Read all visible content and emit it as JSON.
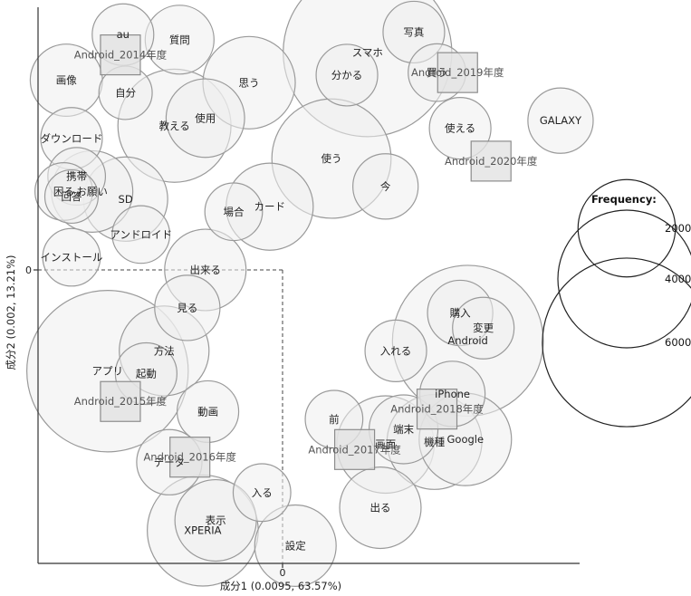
{
  "chart_data": {
    "type": "scatter",
    "xlabel": "成分1 (0.0095, 63.57%)",
    "ylabel": "成分2 (0.002, 13.21%)",
    "x_tick_label": "0",
    "y_tick_label": "0",
    "xlim": [
      -0.95,
      1.14
    ],
    "ylim": [
      -1.16,
      1.04
    ],
    "legend": {
      "title": "Frequency:",
      "entries": [
        {
          "value": 2000,
          "label": "2000"
        },
        {
          "value": 4000,
          "label": "4000"
        },
        {
          "value": 6000,
          "label": "6000"
        }
      ]
    },
    "words": [
      {
        "label": "au",
        "x": -0.62,
        "y": 0.93,
        "size": 800
      },
      {
        "label": "質問",
        "x": -0.4,
        "y": 0.91,
        "size": 1000
      },
      {
        "label": "スマホ",
        "x": 0.33,
        "y": 0.86,
        "size": 6000
      },
      {
        "label": "写真",
        "x": 0.51,
        "y": 0.94,
        "size": 800
      },
      {
        "label": "画像",
        "x": -0.84,
        "y": 0.75,
        "size": 1100
      },
      {
        "label": "思う",
        "x": -0.13,
        "y": 0.74,
        "size": 1800
      },
      {
        "label": "分かる",
        "x": 0.25,
        "y": 0.77,
        "size": 800
      },
      {
        "label": "買う",
        "x": 0.6,
        "y": 0.78,
        "size": 700
      },
      {
        "label": "自分",
        "x": -0.61,
        "y": 0.7,
        "size": 600
      },
      {
        "label": "使用",
        "x": -0.3,
        "y": 0.6,
        "size": 1300
      },
      {
        "label": "教える",
        "x": -0.42,
        "y": 0.57,
        "size": 2700
      },
      {
        "label": "使える",
        "x": 0.69,
        "y": 0.56,
        "size": 800
      },
      {
        "label": "GALAXY",
        "x": 1.08,
        "y": 0.59,
        "size": 900
      },
      {
        "label": "ダウンロード",
        "x": -0.82,
        "y": 0.52,
        "size": 800
      },
      {
        "label": "使う",
        "x": 0.19,
        "y": 0.44,
        "size": 3000
      },
      {
        "label": "携帯",
        "x": -0.8,
        "y": 0.37,
        "size": 700
      },
      {
        "label": "今",
        "x": 0.4,
        "y": 0.33,
        "size": 900
      },
      {
        "label": "困る",
        "x": -0.85,
        "y": 0.31,
        "size": 700
      },
      {
        "label": "お願い",
        "x": -0.74,
        "y": 0.31,
        "size": 1400
      },
      {
        "label": "SD",
        "x": -0.61,
        "y": 0.28,
        "size": 1500
      },
      {
        "label": "回答",
        "x": -0.82,
        "y": 0.29,
        "size": 600
      },
      {
        "label": "カード",
        "x": -0.05,
        "y": 0.25,
        "size": 1600
      },
      {
        "label": "場合",
        "x": -0.19,
        "y": 0.23,
        "size": 700
      },
      {
        "label": "アンドロイド",
        "x": -0.55,
        "y": 0.14,
        "size": 700
      },
      {
        "label": "インストール",
        "x": -0.82,
        "y": 0.05,
        "size": 700
      },
      {
        "label": "出来る",
        "x": -0.3,
        "y": 0.0,
        "size": 1400
      },
      {
        "label": "見る",
        "x": -0.37,
        "y": -0.15,
        "size": 900
      },
      {
        "label": "購入",
        "x": 0.69,
        "y": -0.17,
        "size": 900
      },
      {
        "label": "変更",
        "x": 0.78,
        "y": -0.23,
        "size": 800
      },
      {
        "label": "Android",
        "x": 0.72,
        "y": -0.28,
        "size": 4800
      },
      {
        "label": "方法",
        "x": -0.46,
        "y": -0.32,
        "size": 1700
      },
      {
        "label": "入れる",
        "x": 0.44,
        "y": -0.32,
        "size": 800
      },
      {
        "label": "アプリ",
        "x": -0.68,
        "y": -0.4,
        "size": 5500
      },
      {
        "label": "起動",
        "x": -0.53,
        "y": -0.41,
        "size": 800
      },
      {
        "label": "iPhone",
        "x": 0.66,
        "y": -0.49,
        "size": 900
      },
      {
        "label": "動画",
        "x": -0.29,
        "y": -0.56,
        "size": 800
      },
      {
        "label": "前",
        "x": 0.2,
        "y": -0.59,
        "size": 700
      },
      {
        "label": "端末",
        "x": 0.47,
        "y": -0.63,
        "size": 1000
      },
      {
        "label": "機種",
        "x": 0.59,
        "y": -0.68,
        "size": 1900
      },
      {
        "label": "Google",
        "x": 0.71,
        "y": -0.67,
        "size": 1800
      },
      {
        "label": "画面",
        "x": 0.4,
        "y": -0.69,
        "size": 2000
      },
      {
        "label": "データ",
        "x": -0.44,
        "y": -0.76,
        "size": 900
      },
      {
        "label": "入る",
        "x": -0.08,
        "y": -0.88,
        "size": 700
      },
      {
        "label": "出る",
        "x": 0.38,
        "y": -0.94,
        "size": 1400
      },
      {
        "label": "表示",
        "x": -0.26,
        "y": -0.99,
        "size": 1400
      },
      {
        "label": "XPERIA",
        "x": -0.31,
        "y": -1.03,
        "size": 2600
      },
      {
        "label": "設定",
        "x": 0.05,
        "y": -1.09,
        "size": 1400
      }
    ],
    "categories": [
      {
        "label": "Android_2014年度",
        "x": -0.63,
        "y": 0.85
      },
      {
        "label": "Android_2019年度",
        "x": 0.68,
        "y": 0.78
      },
      {
        "label": "Android_2020年度",
        "x": 0.81,
        "y": 0.43
      },
      {
        "label": "Android_2015年度",
        "x": -0.63,
        "y": -0.52
      },
      {
        "label": "Android_2018年度",
        "x": 0.6,
        "y": -0.55
      },
      {
        "label": "Android_2017年度",
        "x": 0.28,
        "y": -0.71
      },
      {
        "label": "Android_2016年度",
        "x": -0.36,
        "y": -0.74
      }
    ]
  }
}
